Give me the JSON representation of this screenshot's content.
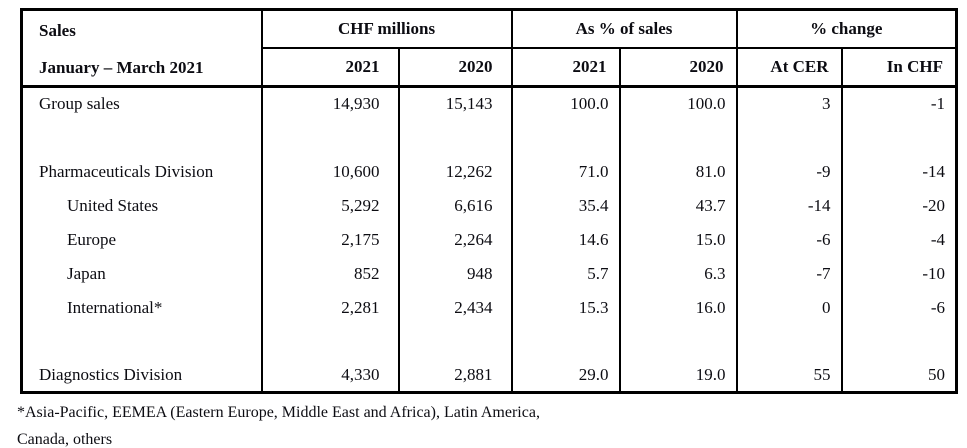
{
  "table": {
    "title": "Sales",
    "subtitle": "January – March 2021",
    "groups": {
      "chf": "CHF millions",
      "pct": "As % of sales",
      "change": "% change"
    },
    "columns": {
      "chf_2021": "2021",
      "chf_2020": "2020",
      "pct_2021": "2021",
      "pct_2020": "2020",
      "at_cer": "At CER",
      "in_chf": "In CHF"
    },
    "rows": [
      {
        "label": "Group sales",
        "values": [
          "14,930",
          "15,143",
          "100.0",
          "100.0",
          "3",
          "-1"
        ]
      },
      {
        "label": "",
        "values": [
          "",
          "",
          "",
          "",
          "",
          ""
        ]
      },
      {
        "label": "Pharmaceuticals Division",
        "values": [
          "10,600",
          "12,262",
          "71.0",
          "81.0",
          "-9",
          "-14"
        ]
      },
      {
        "label": "United States",
        "values": [
          "5,292",
          "6,616",
          "35.4",
          "43.7",
          "-14",
          "-20"
        ]
      },
      {
        "label": "Europe",
        "values": [
          "2,175",
          "2,264",
          "14.6",
          "15.0",
          "-6",
          "-4"
        ]
      },
      {
        "label": "Japan",
        "values": [
          "852",
          "948",
          "5.7",
          "6.3",
          "-7",
          "-10"
        ]
      },
      {
        "label": "International*",
        "values": [
          "2,281",
          "2,434",
          "15.3",
          "16.0",
          "0",
          "-6"
        ]
      },
      {
        "label": "",
        "values": [
          "",
          "",
          "",
          "",
          "",
          ""
        ]
      },
      {
        "label": "Diagnostics Division",
        "values": [
          "4,330",
          "2,881",
          "29.0",
          "19.0",
          "55",
          "50"
        ]
      }
    ],
    "footnote_lines": [
      "*Asia-Pacific, EEMEA (Eastern Europe, Middle East and Africa), Latin America,",
      "Canada, others"
    ]
  },
  "colors": {
    "text": "#0c0c12",
    "border": "#000000",
    "background": "#ffffff"
  }
}
